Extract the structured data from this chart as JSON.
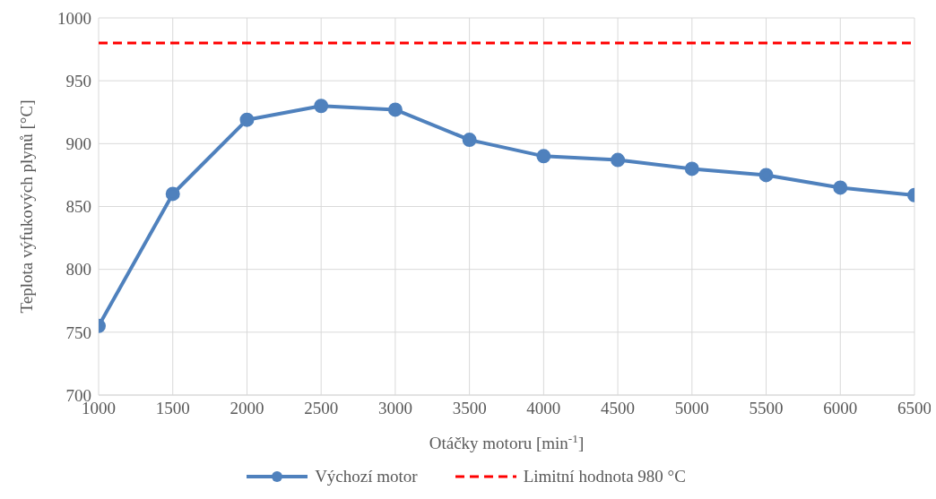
{
  "chart_data": {
    "type": "line",
    "xlabel": "Otáčky motoru [min$^{-1}$]",
    "ylabel": "Teplota výfukových plynů [°C]",
    "x": [
      1000,
      1500,
      2000,
      2500,
      3000,
      3500,
      4000,
      4500,
      5000,
      5500,
      6000,
      6500
    ],
    "series": [
      {
        "name": "Výchozí motor",
        "color": "#4f81bd",
        "values": [
          755,
          860,
          919,
          930,
          927,
          903,
          890,
          887,
          880,
          875,
          865,
          859
        ]
      }
    ],
    "ref_lines": [
      {
        "axis": "y",
        "value": 980,
        "label": "Limitní hodnota 980 °C",
        "color": "#ff0000",
        "line_style": "dashed"
      }
    ],
    "xlim": [
      1000,
      6500
    ],
    "xticks": [
      1000,
      1500,
      2000,
      2500,
      3000,
      3500,
      4000,
      4500,
      5000,
      5500,
      6000,
      6500
    ],
    "ylim": [
      700,
      1000
    ],
    "yticks": [
      700,
      750,
      800,
      850,
      900,
      950,
      1000
    ],
    "grid": true,
    "legend": "bottom",
    "marker": "circle",
    "line_style": "solid"
  }
}
